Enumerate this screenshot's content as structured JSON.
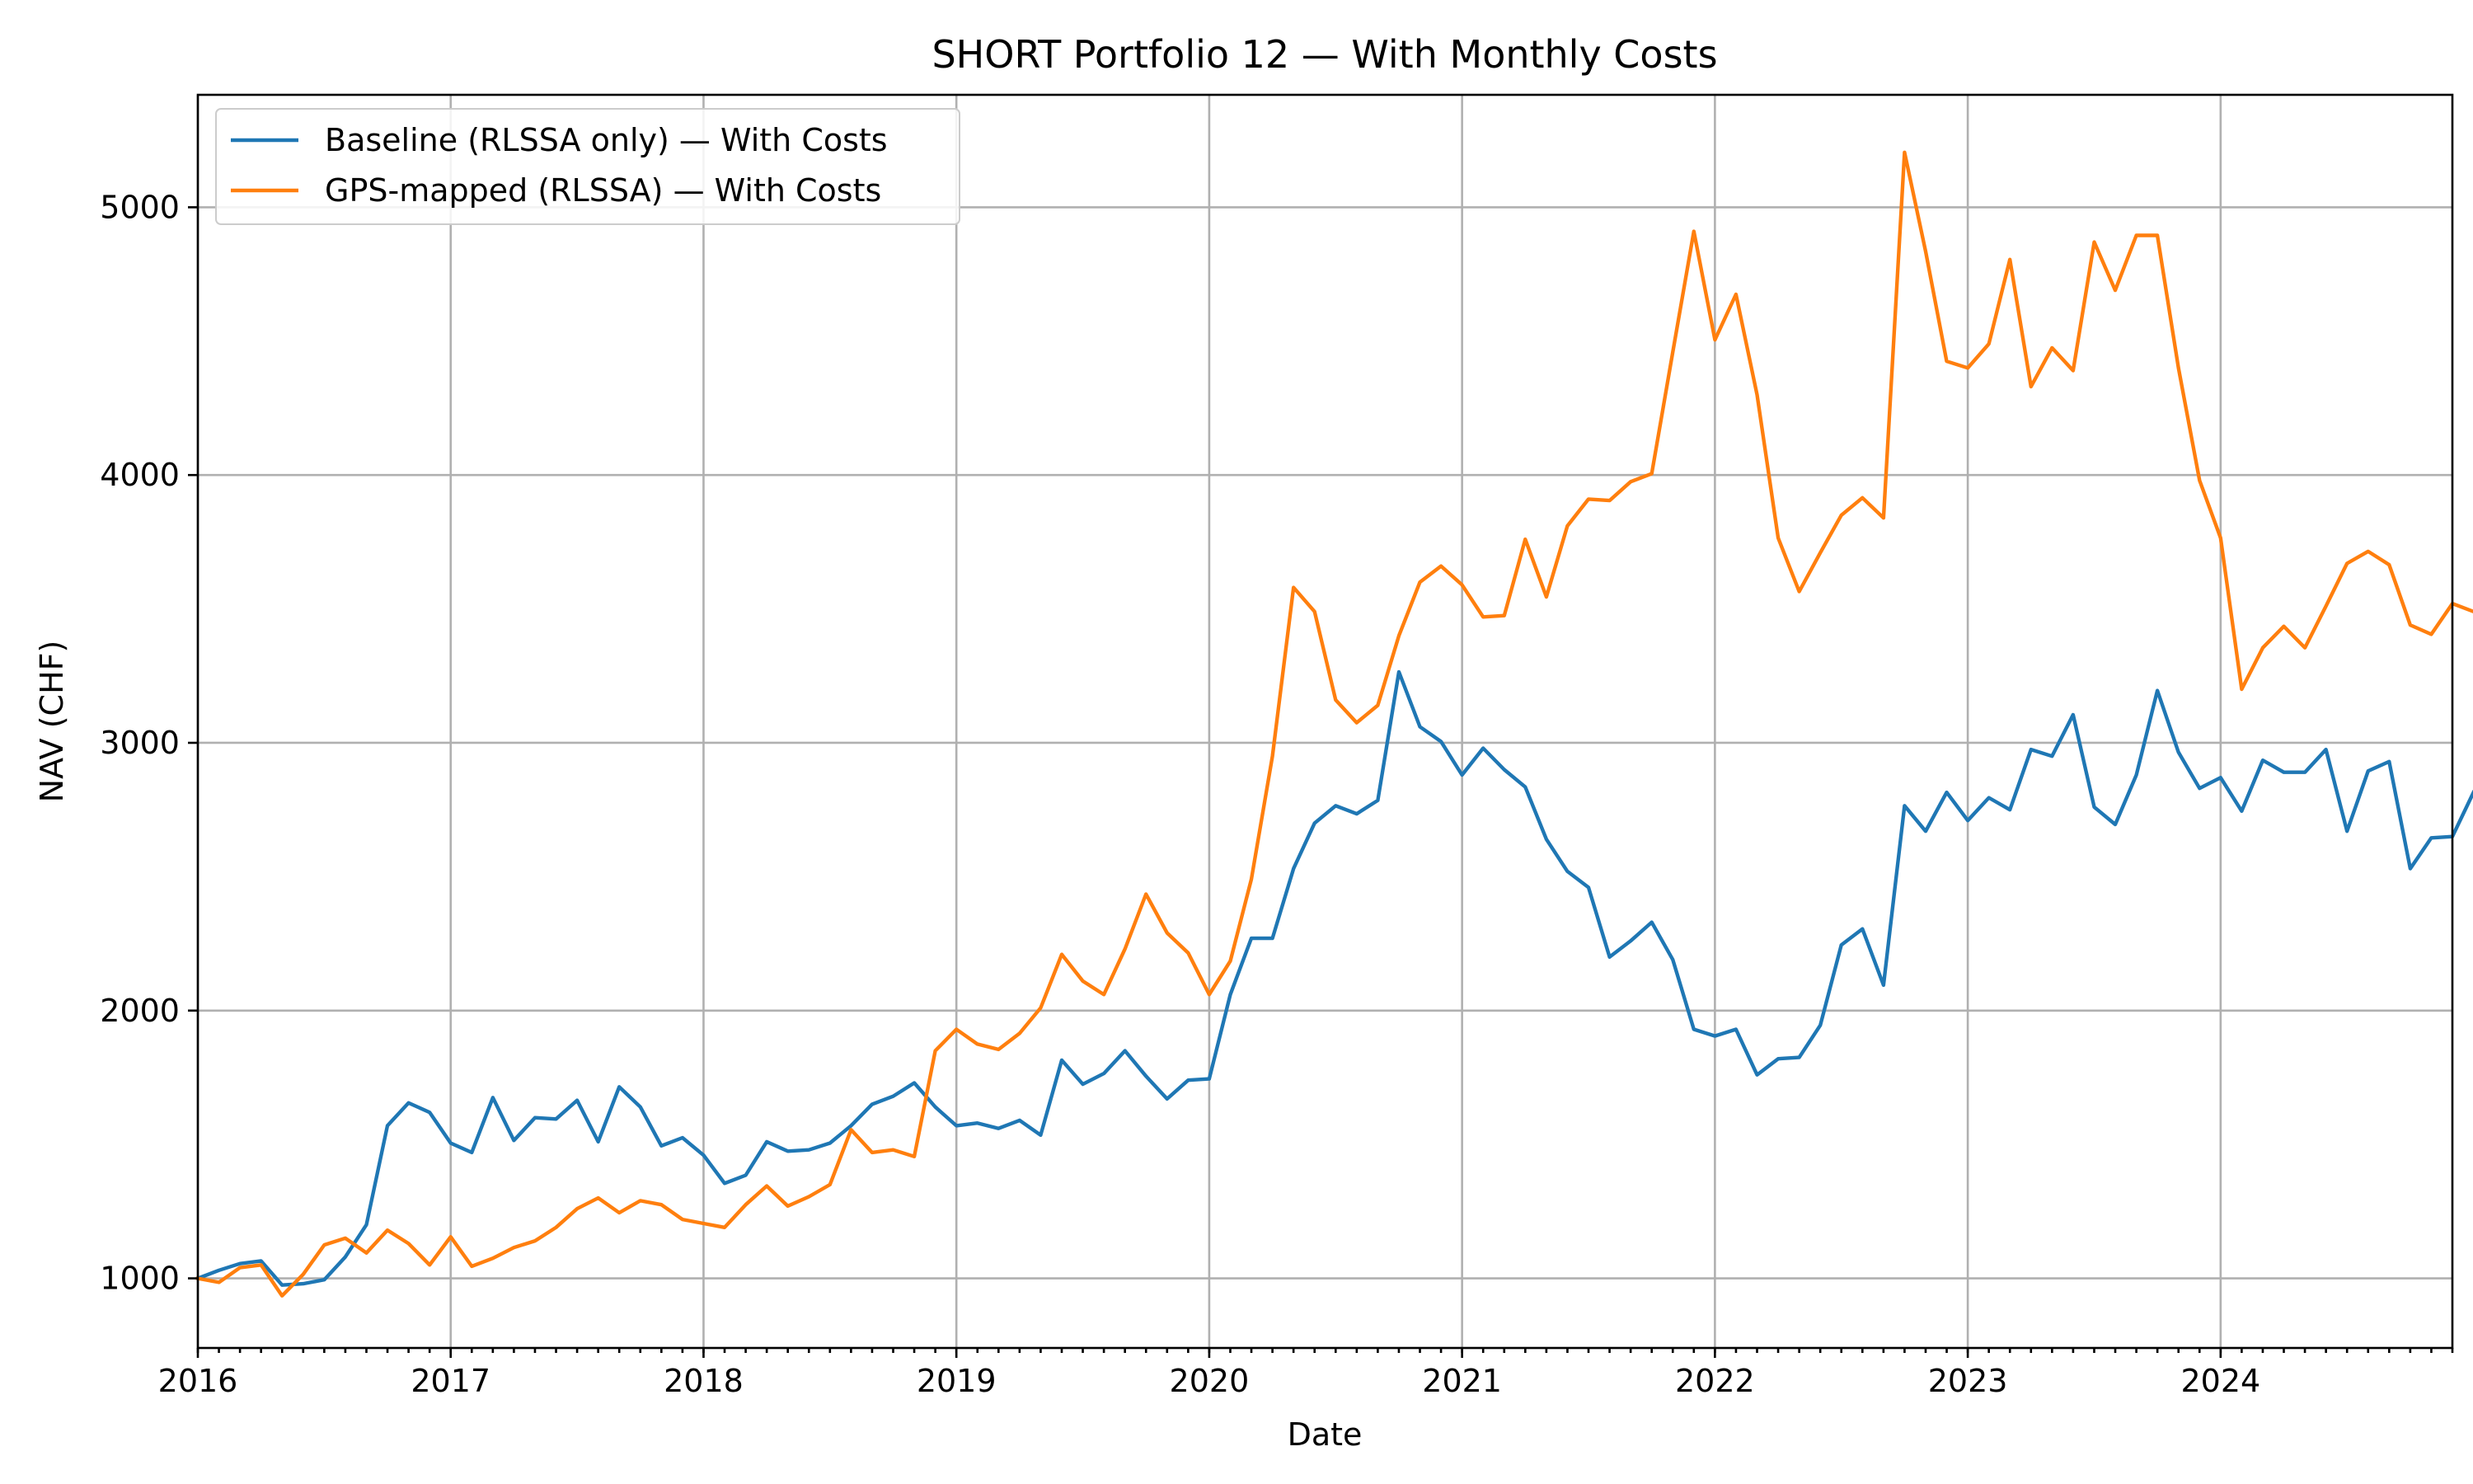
{
  "chart_data": {
    "type": "line",
    "title": "SHORT Portfolio 12 — With Monthly Costs",
    "xlabel": "Date",
    "ylabel": "NAV (CHF)",
    "x_start": "2016-01",
    "x_frequency": "monthly",
    "xlim": [
      "2016-01",
      "2024-12"
    ],
    "ylim": [
      740,
      5420
    ],
    "x_ticks": [
      {
        "value": "2016-01",
        "label": "2016"
      },
      {
        "value": "2017-01",
        "label": "2017"
      },
      {
        "value": "2018-01",
        "label": "2018"
      },
      {
        "value": "2019-01",
        "label": "2019"
      },
      {
        "value": "2020-01",
        "label": "2020"
      },
      {
        "value": "2021-01",
        "label": "2021"
      },
      {
        "value": "2022-01",
        "label": "2022"
      },
      {
        "value": "2023-01",
        "label": "2023"
      },
      {
        "value": "2024-01",
        "label": "2024"
      }
    ],
    "y_ticks": [
      {
        "value": 1000,
        "label": "1000"
      },
      {
        "value": 2000,
        "label": "2000"
      },
      {
        "value": 3000,
        "label": "3000"
      },
      {
        "value": 4000,
        "label": "4000"
      },
      {
        "value": 5000,
        "label": "5000"
      }
    ],
    "grid": true,
    "legend_position": "top-left",
    "series": [
      {
        "name": "Baseline (RLSSA only) — With Costs",
        "color": "#1f77b4",
        "values": [
          1000,
          1030,
          1055,
          1065,
          975,
          980,
          995,
          1080,
          1200,
          1570,
          1655,
          1620,
          1505,
          1470,
          1675,
          1515,
          1600,
          1595,
          1665,
          1510,
          1715,
          1640,
          1495,
          1525,
          1460,
          1355,
          1385,
          1510,
          1475,
          1480,
          1505,
          1570,
          1650,
          1680,
          1730,
          1640,
          1570,
          1580,
          1560,
          1590,
          1535,
          1815,
          1725,
          1765,
          1850,
          1755,
          1670,
          1740,
          1745,
          2060,
          2270,
          2270,
          2530,
          2700,
          2765,
          2735,
          2785,
          3265,
          3060,
          3005,
          2880,
          2980,
          2900,
          2835,
          2640,
          2520,
          2460,
          2200,
          2260,
          2330,
          2190,
          1930,
          1905,
          1930,
          1760,
          1820,
          1825,
          1945,
          2245,
          2305,
          2095,
          2765,
          2670,
          2815,
          2710,
          2795,
          2750,
          2975,
          2950,
          3105,
          2760,
          2695,
          2880,
          3195,
          2965,
          2830,
          2870,
          2745,
          2935,
          2890,
          2890,
          2975,
          2670,
          2895,
          2930,
          2530,
          2645,
          2650,
          2815
        ]
      },
      {
        "name": "GPS-mapped (RLSSA) — With Costs",
        "color": "#ff7f0e",
        "values": [
          1000,
          985,
          1040,
          1050,
          935,
          1015,
          1125,
          1150,
          1095,
          1180,
          1130,
          1050,
          1155,
          1045,
          1075,
          1115,
          1140,
          1190,
          1260,
          1300,
          1245,
          1290,
          1275,
          1220,
          1205,
          1190,
          1275,
          1345,
          1270,
          1305,
          1350,
          1555,
          1470,
          1480,
          1455,
          1850,
          1930,
          1875,
          1855,
          1915,
          2010,
          2210,
          2110,
          2060,
          2230,
          2435,
          2290,
          2215,
          2060,
          2185,
          2490,
          2950,
          3580,
          3490,
          3160,
          3075,
          3140,
          3400,
          3600,
          3660,
          3590,
          3470,
          3475,
          3760,
          3545,
          3810,
          3910,
          3905,
          3975,
          4005,
          4460,
          4910,
          4505,
          4675,
          4300,
          3765,
          3565,
          3710,
          3850,
          3915,
          3840,
          5205,
          4835,
          4425,
          4400,
          4490,
          4805,
          4330,
          4475,
          4390,
          4870,
          4690,
          4895,
          4895,
          4400,
          3980,
          3765,
          3200,
          3355,
          3435,
          3355,
          3510,
          3670,
          3715,
          3665,
          3440,
          3405,
          3520,
          3490
        ]
      }
    ]
  }
}
